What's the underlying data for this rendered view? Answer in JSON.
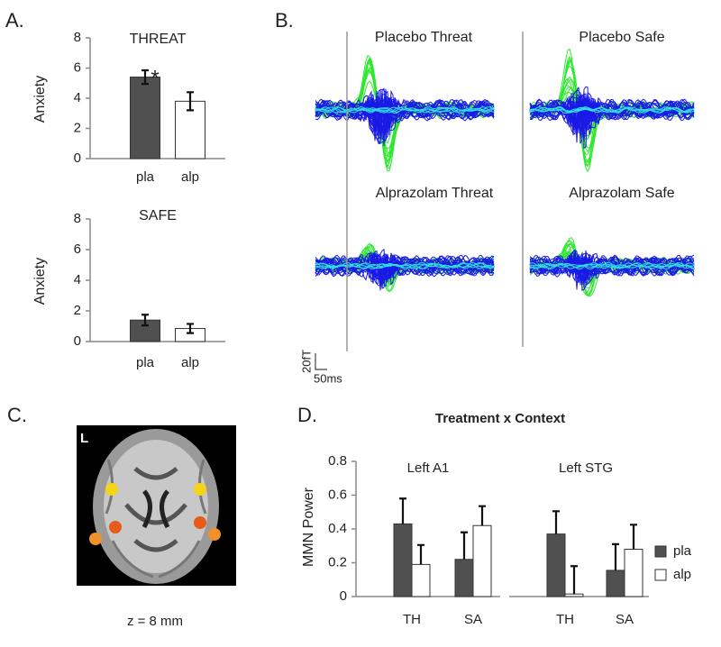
{
  "figure": {
    "panel_labels": [
      "A.",
      "B.",
      "C.",
      "D."
    ],
    "waveform_titles": [
      "Placebo Threat",
      "Placebo Safe",
      "Alprazolam Threat",
      "Alprazolam Safe"
    ],
    "scale_bar": {
      "y": "20fT",
      "x": "50ms"
    },
    "brain": {
      "hemisphere": "L",
      "caption": "z = 8 mm"
    }
  },
  "chart_data": [
    {
      "type": "bar",
      "title": "THREAT",
      "y_label": "Anxiety",
      "categories": [
        "pla",
        "alp"
      ],
      "values": [
        5.4,
        3.8
      ],
      "errors": [
        0.45,
        0.6
      ],
      "colors": [
        "#505050",
        "#ffffff"
      ],
      "ylim": [
        0,
        8
      ],
      "yticks": [
        0,
        2,
        4,
        6,
        8
      ],
      "annotations": [
        "*"
      ]
    },
    {
      "type": "bar",
      "title": "SAFE",
      "y_label": "Anxiety",
      "categories": [
        "pla",
        "alp"
      ],
      "values": [
        1.4,
        0.85
      ],
      "errors": [
        0.35,
        0.3
      ],
      "colors": [
        "#505050",
        "#ffffff"
      ],
      "ylim": [
        0,
        8
      ],
      "yticks": [
        0,
        2,
        4,
        6,
        8
      ]
    },
    {
      "type": "grouped_bar",
      "title": "Treatment x Context",
      "y_label": "MMN Power",
      "groups": [
        "Left A1",
        "Left STG"
      ],
      "categories": [
        "TH",
        "SA",
        "TH",
        "SA"
      ],
      "series": [
        {
          "name": "pla",
          "color": "#505050",
          "values": [
            0.43,
            0.22,
            0.37,
            0.155
          ],
          "errors": [
            0.15,
            0.16,
            0.135,
            0.155
          ]
        },
        {
          "name": "alp",
          "color": "#ffffff",
          "values": [
            0.19,
            0.42,
            0.015,
            0.28
          ],
          "errors": [
            0.115,
            0.115,
            0.165,
            0.145
          ]
        }
      ],
      "ylim": [
        0,
        0.8
      ],
      "yticks": [
        0,
        0.2,
        0.4,
        0.6,
        0.8
      ],
      "legend": "right"
    }
  ]
}
